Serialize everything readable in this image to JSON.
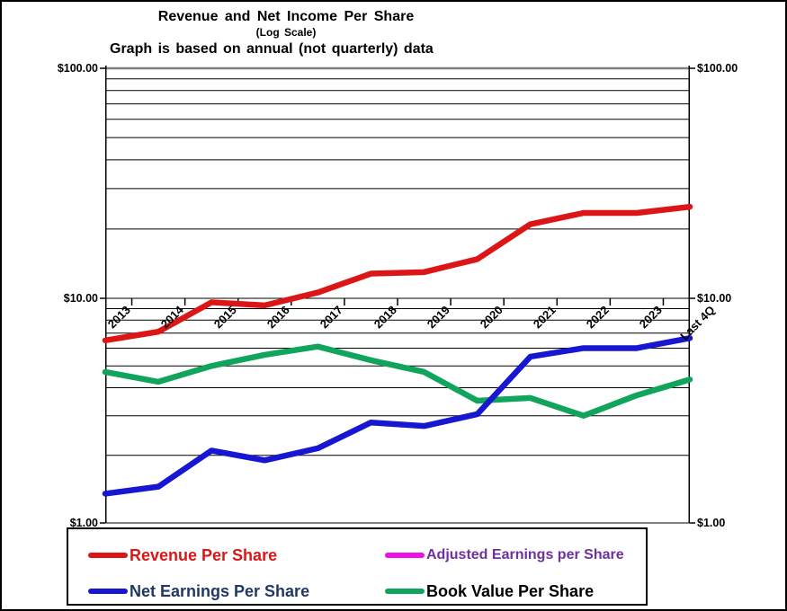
{
  "header": {
    "title": "Revenue and Net Income Per Share",
    "subtitle": "(Log Scale)",
    "note": "Graph is based on annual (not quarterly) data"
  },
  "colors": {
    "gridline": "#000000",
    "top_gridline": "#808080",
    "axis": "#000000",
    "background": "#ffffff"
  },
  "chart_data": {
    "type": "line",
    "scale": "log",
    "title": "Revenue and Net Income Per Share",
    "subtitle": "(Log Scale)",
    "annotation": "Graph is based on annual (not quarterly) data",
    "categories": [
      "2013",
      "2014",
      "2015",
      "2016",
      "2017",
      "2018",
      "2019",
      "2020",
      "2021",
      "2022",
      "2023",
      "Last 4Q"
    ],
    "series": [
      {
        "name": "Revenue Per Share",
        "color": "#dc1616",
        "label_color": "#dc1616",
        "values": [
          6.5,
          7.1,
          9.6,
          9.3,
          10.6,
          12.8,
          13.0,
          14.8,
          21.0,
          23.5,
          23.5,
          25.0
        ]
      },
      {
        "name": "Adjusted Earnings per Share",
        "color": "#ee10e8",
        "label_color": "#7030a0",
        "values": []
      },
      {
        "name": "Net Earnings Per Share",
        "color": "#1717d2",
        "label_color": "#1f3864",
        "values": [
          1.35,
          1.45,
          2.1,
          1.9,
          2.15,
          2.8,
          2.7,
          3.05,
          5.5,
          6.0,
          6.0,
          6.65
        ]
      },
      {
        "name": "Book Value Per Share",
        "color": "#10a45c",
        "label_color": "#000000",
        "values": [
          4.7,
          4.25,
          5.0,
          5.6,
          6.1,
          5.3,
          4.7,
          3.5,
          3.6,
          3.0,
          3.7,
          4.35
        ]
      }
    ],
    "ylim": [
      1,
      100
    ],
    "y_ticks": [
      {
        "label": "$100.00",
        "value": 100
      },
      {
        "label": "$10.00",
        "value": 10
      },
      {
        "label": "$1.00",
        "value": 1
      }
    ],
    "gridline_values": [
      100,
      90,
      80,
      70,
      60,
      50,
      40,
      30,
      20,
      10,
      9,
      8,
      7,
      6,
      5,
      4,
      3,
      2,
      1
    ],
    "grid": true,
    "legend_position": "bottom",
    "xlabel": "",
    "ylabel": ""
  }
}
